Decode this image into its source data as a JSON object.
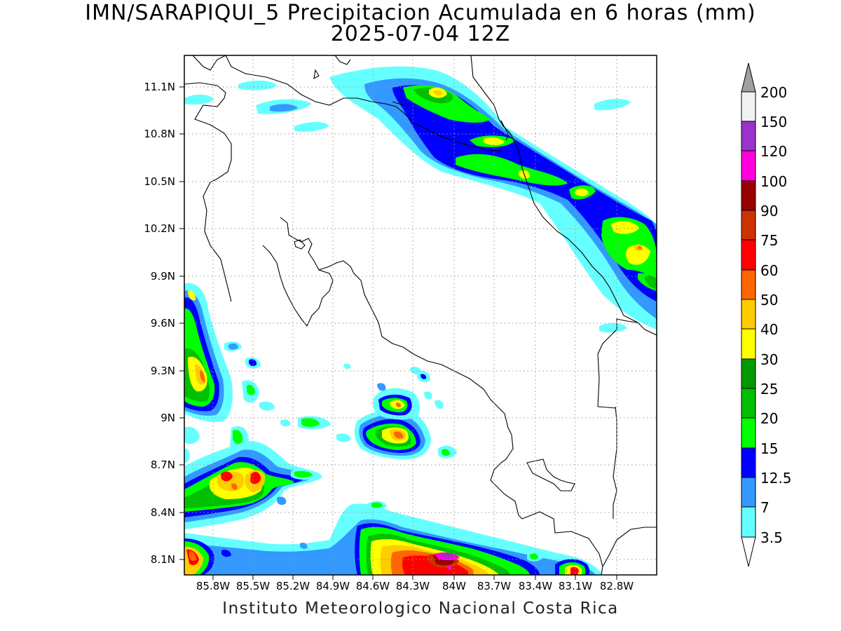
{
  "title": {
    "line1": "IMN/SARAPIQUI_5 Precipitacion Acumulada en 6 horas (mm)",
    "line2": "2025-07-04 12Z"
  },
  "footer": "Instituto Meteorologico Nacional Costa Rica",
  "axes": {
    "lat_labels": [
      "11.1N",
      "10.8N",
      "10.5N",
      "10.2N",
      "9.9N",
      "9.6N",
      "9.3N",
      "9N",
      "8.7N",
      "8.4N",
      "8.1N"
    ],
    "lon_labels": [
      "85.8W",
      "85.5W",
      "85.2W",
      "84.9W",
      "84.6W",
      "84.3W",
      "84W",
      "83.7W",
      "83.4W",
      "83.1W",
      "82.8W"
    ]
  },
  "colorbar": {
    "labels": [
      "200",
      "150",
      "120",
      "100",
      "90",
      "75",
      "60",
      "50",
      "40",
      "30",
      "25",
      "20",
      "15",
      "12.5",
      "7",
      "3.5"
    ],
    "colors": {
      "top_triangle": "#a0a0a0",
      "c200": "#f2f2f2",
      "c150": "#9933cc",
      "c120": "#ff00dd",
      "c100": "#990000",
      "c90": "#cc3300",
      "c75": "#ff0000",
      "c60": "#ff6600",
      "c50": "#ffcc00",
      "c40": "#ffff00",
      "c30": "#009900",
      "c25": "#00c000",
      "c20": "#00ff00",
      "c15": "#0000ff",
      "c12_5": "#3399ff",
      "c7": "#66ffff",
      "bottom_triangle": "#ffffff"
    }
  },
  "grid": "dotted"
}
